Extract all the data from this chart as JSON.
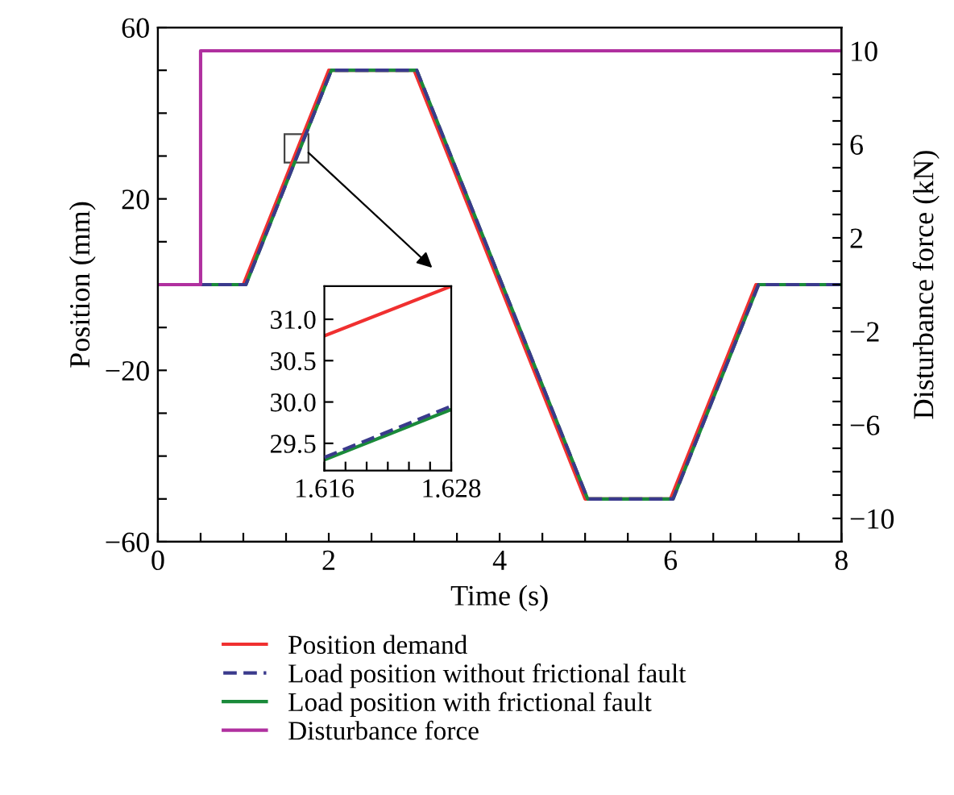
{
  "chart_data": [
    {
      "type": "line",
      "xlabel": "Time (s)",
      "ylabel": "Position (mm)",
      "y2label": "Disturbance force (kN)",
      "legend": "bottom",
      "grid": false,
      "marker": "none",
      "xlim": [
        0,
        8
      ],
      "xticks": [
        0,
        {
          "value": 0.5,
          "label": null
        },
        {
          "value": 1,
          "label": null
        },
        {
          "value": 1.5,
          "label": null
        },
        2,
        {
          "value": 2.5,
          "label": null
        },
        {
          "value": 3,
          "label": null
        },
        {
          "value": 3.5,
          "label": null
        },
        4,
        {
          "value": 4.5,
          "label": null
        },
        {
          "value": 5,
          "label": null
        },
        {
          "value": 5.5,
          "label": null
        },
        6,
        {
          "value": 6.5,
          "label": null
        },
        {
          "value": 7,
          "label": null
        },
        {
          "value": 7.5,
          "label": null
        },
        8
      ],
      "ylim": [
        -60,
        60
      ],
      "yticks": [
        -60,
        {
          "value": -50,
          "label": null
        },
        {
          "value": -40,
          "label": null
        },
        {
          "value": -30,
          "label": null
        },
        -20,
        {
          "value": -10,
          "label": null
        },
        {
          "value": 0,
          "label": null
        },
        {
          "value": 10,
          "label": null
        },
        20,
        {
          "value": 30,
          "label": null
        },
        {
          "value": 40,
          "label": null
        },
        {
          "value": 50,
          "label": null
        },
        60
      ],
      "y2lim": [
        -11,
        11
      ],
      "y2ticks": [
        -10,
        {
          "value": -9,
          "label": null
        },
        {
          "value": -8,
          "label": null
        },
        {
          "value": -7,
          "label": null
        },
        -6,
        {
          "value": -5,
          "label": null
        },
        {
          "value": -4,
          "label": null
        },
        {
          "value": -3,
          "label": null
        },
        -2,
        {
          "value": -1,
          "label": null
        },
        {
          "value": 0,
          "label": null
        },
        {
          "value": 1,
          "label": null
        },
        2,
        {
          "value": 3,
          "label": null
        },
        {
          "value": 4,
          "label": null
        },
        {
          "value": 5,
          "label": null
        },
        6,
        {
          "value": 7,
          "label": null
        },
        {
          "value": 8,
          "label": null
        },
        {
          "value": 9,
          "label": null
        },
        10
      ],
      "series": [
        {
          "name": "Position demand",
          "color": "#f03030",
          "line_style": "solid",
          "x": [
            0,
            1,
            2,
            3,
            5,
            6,
            7,
            8
          ],
          "values": [
            0,
            0,
            50,
            50,
            -50,
            -50,
            0,
            0
          ]
        },
        {
          "name": "Load position without frictional fault",
          "color": "#3a3a8c",
          "line_style": "dashed",
          "x": [
            0,
            1.03,
            2.03,
            3.03,
            5.03,
            6.03,
            7.03,
            8
          ],
          "values": [
            0,
            0,
            50,
            50,
            -50,
            -50,
            0,
            0
          ]
        },
        {
          "name": "Load position with frictional fault",
          "color": "#1a8a3a",
          "line_style": "solid",
          "x": [
            0,
            1.03,
            2.03,
            3.03,
            5.03,
            6.03,
            7.03,
            8
          ],
          "values": [
            0,
            0,
            50,
            50,
            -50,
            -50,
            0,
            0
          ]
        },
        {
          "name": "Disturbance force",
          "color": "#b0309f",
          "line_style": "solid",
          "axis": "y2",
          "x": [
            0,
            0.5,
            0.5,
            8
          ],
          "values": [
            0,
            0,
            10,
            10
          ]
        }
      ]
    },
    {
      "type": "line",
      "grid": false,
      "marker": "none",
      "xlim": [
        1.616,
        1.628
      ],
      "xticks": [
        1.616,
        {
          "value": 1.618,
          "label": null
        },
        {
          "value": 1.62,
          "label": null
        },
        {
          "value": 1.622,
          "label": null
        },
        {
          "value": 1.624,
          "label": null
        },
        {
          "value": 1.626,
          "label": null
        },
        1.628
      ],
      "ylim": [
        29.17,
        31.4
      ],
      "yticks": [
        {
          "value": 29.5,
          "label": "29.5"
        },
        {
          "value": 30,
          "label": "30.0"
        },
        {
          "value": 30.5,
          "label": "30.5"
        },
        {
          "value": 31,
          "label": "31.0"
        }
      ],
      "series": [
        {
          "color": "#f03030",
          "line_style": "solid",
          "x": [
            1.616,
            1.628
          ],
          "values": [
            30.8,
            31.4
          ]
        },
        {
          "color": "#3a3a8c",
          "line_style": "dashed",
          "x": [
            1.616,
            1.628
          ],
          "values": [
            29.33,
            29.95
          ]
        },
        {
          "color": "#1a8a3a",
          "line_style": "solid",
          "x": [
            1.616,
            1.628
          ],
          "values": [
            29.3,
            29.91
          ]
        }
      ]
    }
  ]
}
